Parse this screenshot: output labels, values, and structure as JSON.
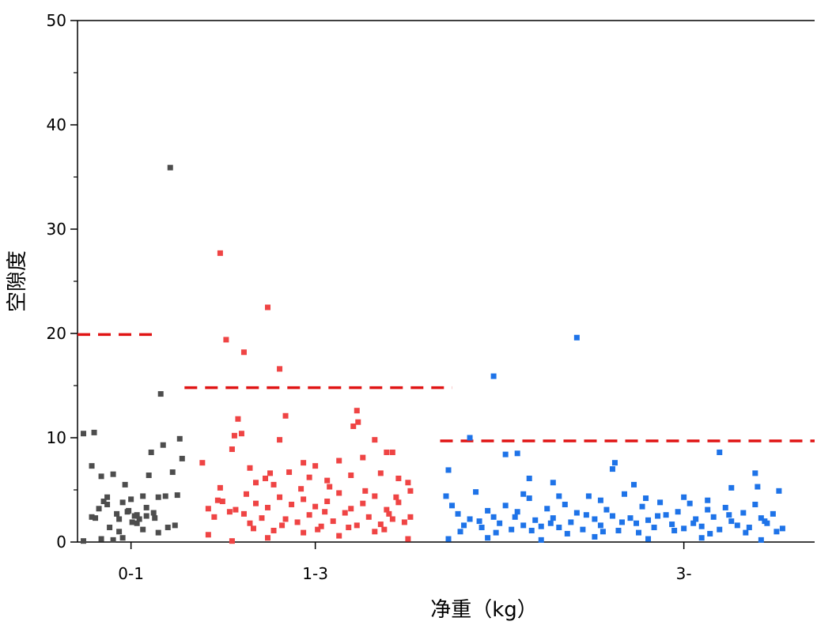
{
  "chart_data": {
    "type": "scatter",
    "xlabel": "净重（kg）",
    "ylabel": "空隙度",
    "ylim": [
      0,
      50
    ],
    "yticks": [
      0,
      10,
      20,
      30,
      40,
      50
    ],
    "categories": [
      "0-1",
      "1-3",
      "3-"
    ],
    "grid": false,
    "legend": "none",
    "series": [
      {
        "category": "0-1",
        "color": "#4d4d4d",
        "thresholds": 19.9,
        "points": [
          [
            0.05,
            10.4
          ],
          [
            0.14,
            10.5
          ],
          [
            0.12,
            7.3
          ],
          [
            0.05,
            0.1
          ],
          [
            0.2,
            0.3
          ],
          [
            0.3,
            0.2
          ],
          [
            0.38,
            0.4
          ],
          [
            0.12,
            2.4
          ],
          [
            0.18,
            3.2
          ],
          [
            0.22,
            3.9
          ],
          [
            0.25,
            4.3
          ],
          [
            0.3,
            6.5
          ],
          [
            0.33,
            2.7
          ],
          [
            0.35,
            2.2
          ],
          [
            0.38,
            3.8
          ],
          [
            0.4,
            5.5
          ],
          [
            0.42,
            2.9
          ],
          [
            0.45,
            4.1
          ],
          [
            0.48,
            2.5
          ],
          [
            0.5,
            1.8
          ],
          [
            0.52,
            2.2
          ],
          [
            0.55,
            4.4
          ],
          [
            0.58,
            3.3
          ],
          [
            0.6,
            6.4
          ],
          [
            0.62,
            8.6
          ],
          [
            0.65,
            2.3
          ],
          [
            0.68,
            4.3
          ],
          [
            0.7,
            14.2
          ],
          [
            0.72,
            9.3
          ],
          [
            0.74,
            4.4
          ],
          [
            0.76,
            1.4
          ],
          [
            0.78,
            35.9
          ],
          [
            0.8,
            6.7
          ],
          [
            0.82,
            1.6
          ],
          [
            0.84,
            4.5
          ],
          [
            0.86,
            9.9
          ],
          [
            0.88,
            8.0
          ],
          [
            0.2,
            6.3
          ],
          [
            0.27,
            1.4
          ],
          [
            0.43,
            3.0
          ],
          [
            0.5,
            2.6
          ],
          [
            0.55,
            1.2
          ],
          [
            0.64,
            2.8
          ],
          [
            0.35,
            1.0
          ],
          [
            0.15,
            2.3
          ],
          [
            0.25,
            3.6
          ],
          [
            0.46,
            1.9
          ],
          [
            0.58,
            2.5
          ],
          [
            0.68,
            0.9
          ]
        ]
      },
      {
        "category": "1-3",
        "color": "#ef4444",
        "thresholds": 14.8,
        "points": [
          [
            1.2,
            27.7
          ],
          [
            1.25,
            19.4
          ],
          [
            1.4,
            18.2
          ],
          [
            1.6,
            22.5
          ],
          [
            1.7,
            16.6
          ],
          [
            1.35,
            11.8
          ],
          [
            1.32,
            10.2
          ],
          [
            1.38,
            10.4
          ],
          [
            1.75,
            12.1
          ],
          [
            1.7,
            9.8
          ],
          [
            2.35,
            12.6
          ],
          [
            2.32,
            11.1
          ],
          [
            2.36,
            11.5
          ],
          [
            2.5,
            9.8
          ],
          [
            1.05,
            7.6
          ],
          [
            1.3,
            8.9
          ],
          [
            1.45,
            7.1
          ],
          [
            1.62,
            6.6
          ],
          [
            1.78,
            6.7
          ],
          [
            1.9,
            7.6
          ],
          [
            2.0,
            7.3
          ],
          [
            2.2,
            7.8
          ],
          [
            2.4,
            8.1
          ],
          [
            2.6,
            8.6
          ],
          [
            2.65,
            8.6
          ],
          [
            1.2,
            5.2
          ],
          [
            1.5,
            5.7
          ],
          [
            1.65,
            5.5
          ],
          [
            1.95,
            6.2
          ],
          [
            2.1,
            5.9
          ],
          [
            2.3,
            6.4
          ],
          [
            2.55,
            6.6
          ],
          [
            2.7,
            6.1
          ],
          [
            2.78,
            5.7
          ],
          [
            2.8,
            4.9
          ],
          [
            1.1,
            3.2
          ],
          [
            1.15,
            2.4
          ],
          [
            1.22,
            3.9
          ],
          [
            1.28,
            2.9
          ],
          [
            1.33,
            3.1
          ],
          [
            1.4,
            2.7
          ],
          [
            1.45,
            1.8
          ],
          [
            1.5,
            3.7
          ],
          [
            1.55,
            2.3
          ],
          [
            1.6,
            3.3
          ],
          [
            1.65,
            1.1
          ],
          [
            1.7,
            4.3
          ],
          [
            1.75,
            2.2
          ],
          [
            1.8,
            3.6
          ],
          [
            1.85,
            1.9
          ],
          [
            1.9,
            4.1
          ],
          [
            1.95,
            2.6
          ],
          [
            2.0,
            3.4
          ],
          [
            2.05,
            1.5
          ],
          [
            2.1,
            3.9
          ],
          [
            2.15,
            2.0
          ],
          [
            2.2,
            4.7
          ],
          [
            2.25,
            2.8
          ],
          [
            2.3,
            3.2
          ],
          [
            2.35,
            1.6
          ],
          [
            2.4,
            3.7
          ],
          [
            2.45,
            2.4
          ],
          [
            2.5,
            4.4
          ],
          [
            2.55,
            1.7
          ],
          [
            2.6,
            3.1
          ],
          [
            2.65,
            2.2
          ],
          [
            2.7,
            3.8
          ],
          [
            2.75,
            1.9
          ],
          [
            2.8,
            2.4
          ],
          [
            2.78,
            0.3
          ],
          [
            1.1,
            0.7
          ],
          [
            1.3,
            0.1
          ],
          [
            1.6,
            0.4
          ],
          [
            1.9,
            0.9
          ],
          [
            2.2,
            0.6
          ],
          [
            2.5,
            1.0
          ],
          [
            1.48,
            1.3
          ],
          [
            1.72,
            1.6
          ],
          [
            2.02,
            1.2
          ],
          [
            2.28,
            1.4
          ],
          [
            2.58,
            1.2
          ],
          [
            1.18,
            4.0
          ],
          [
            1.42,
            4.6
          ],
          [
            1.88,
            5.1
          ],
          [
            2.12,
            5.3
          ],
          [
            2.42,
            4.9
          ],
          [
            2.68,
            4.3
          ],
          [
            1.58,
            6.1
          ],
          [
            2.08,
            2.9
          ],
          [
            2.62,
            2.7
          ]
        ]
      },
      {
        "category": "3-",
        "color": "#1e73e8",
        "thresholds": 9.7,
        "points": [
          [
            3.5,
            15.9
          ],
          [
            4.2,
            19.6
          ],
          [
            3.3,
            10.0
          ],
          [
            3.12,
            6.9
          ],
          [
            4.5,
            7.0
          ],
          [
            4.52,
            7.6
          ],
          [
            5.4,
            8.6
          ],
          [
            5.7,
            6.6
          ],
          [
            3.6,
            8.4
          ],
          [
            3.7,
            8.5
          ],
          [
            3.8,
            6.1
          ],
          [
            4.0,
            5.7
          ],
          [
            3.1,
            4.4
          ],
          [
            3.15,
            3.5
          ],
          [
            3.2,
            2.7
          ],
          [
            3.25,
            1.6
          ],
          [
            3.3,
            2.2
          ],
          [
            3.35,
            4.8
          ],
          [
            3.4,
            1.4
          ],
          [
            3.45,
            3.0
          ],
          [
            3.5,
            2.4
          ],
          [
            3.55,
            1.8
          ],
          [
            3.6,
            3.5
          ],
          [
            3.65,
            1.2
          ],
          [
            3.7,
            2.9
          ],
          [
            3.75,
            1.6
          ],
          [
            3.8,
            4.2
          ],
          [
            3.85,
            2.1
          ],
          [
            3.9,
            1.5
          ],
          [
            3.95,
            3.2
          ],
          [
            4.0,
            2.3
          ],
          [
            4.05,
            1.4
          ],
          [
            4.1,
            3.6
          ],
          [
            4.15,
            1.9
          ],
          [
            4.2,
            2.8
          ],
          [
            4.25,
            1.2
          ],
          [
            4.3,
            4.4
          ],
          [
            4.35,
            2.2
          ],
          [
            4.4,
            1.6
          ],
          [
            4.45,
            3.1
          ],
          [
            4.5,
            2.5
          ],
          [
            4.55,
            1.1
          ],
          [
            4.6,
            4.6
          ],
          [
            4.65,
            2.3
          ],
          [
            4.7,
            1.8
          ],
          [
            4.75,
            3.4
          ],
          [
            4.8,
            2.1
          ],
          [
            4.85,
            1.4
          ],
          [
            4.9,
            3.8
          ],
          [
            4.95,
            2.6
          ],
          [
            5.0,
            1.7
          ],
          [
            5.05,
            2.9
          ],
          [
            5.1,
            1.3
          ],
          [
            5.15,
            3.7
          ],
          [
            5.2,
            2.2
          ],
          [
            5.25,
            1.5
          ],
          [
            5.3,
            3.1
          ],
          [
            5.35,
            2.4
          ],
          [
            5.4,
            1.2
          ],
          [
            5.45,
            3.3
          ],
          [
            5.5,
            2.0
          ],
          [
            5.55,
            1.6
          ],
          [
            5.6,
            2.8
          ],
          [
            5.65,
            1.4
          ],
          [
            5.7,
            3.6
          ],
          [
            5.75,
            2.3
          ],
          [
            5.8,
            1.8
          ],
          [
            5.85,
            2.7
          ],
          [
            5.9,
            4.9
          ],
          [
            5.93,
            1.3
          ],
          [
            3.12,
            0.3
          ],
          [
            3.45,
            0.4
          ],
          [
            3.9,
            0.2
          ],
          [
            4.35,
            0.5
          ],
          [
            4.8,
            0.3
          ],
          [
            5.25,
            0.4
          ],
          [
            5.75,
            0.2
          ],
          [
            3.22,
            1.0
          ],
          [
            3.52,
            0.9
          ],
          [
            3.82,
            1.1
          ],
          [
            4.12,
            0.8
          ],
          [
            4.42,
            1.0
          ],
          [
            4.72,
            0.9
          ],
          [
            5.02,
            1.1
          ],
          [
            5.32,
            0.8
          ],
          [
            5.62,
            0.9
          ],
          [
            5.88,
            1.0
          ],
          [
            3.38,
            2.0
          ],
          [
            3.68,
            2.4
          ],
          [
            3.98,
            1.8
          ],
          [
            4.28,
            2.6
          ],
          [
            4.58,
            1.9
          ],
          [
            4.88,
            2.5
          ],
          [
            5.18,
            1.8
          ],
          [
            5.48,
            2.6
          ],
          [
            5.78,
            2.0
          ],
          [
            4.68,
            5.5
          ],
          [
            5.1,
            4.3
          ],
          [
            5.5,
            5.2
          ],
          [
            5.72,
            5.3
          ],
          [
            3.75,
            4.6
          ],
          [
            4.05,
            4.4
          ],
          [
            4.4,
            4.0
          ],
          [
            4.78,
            4.2
          ],
          [
            5.3,
            4.0
          ]
        ]
      }
    ]
  }
}
